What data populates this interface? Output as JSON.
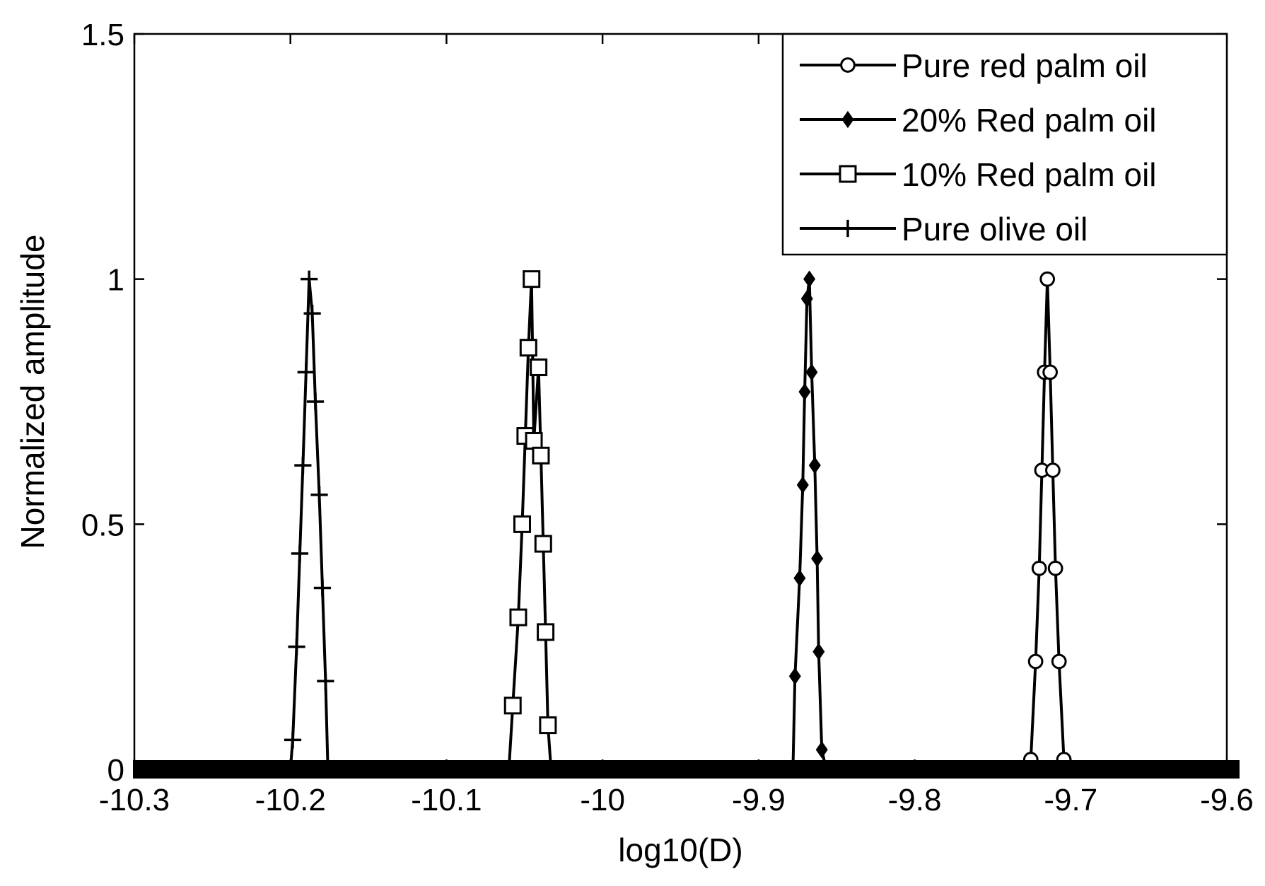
{
  "chart_data": {
    "type": "line",
    "title": "",
    "xlabel": "log10(D)",
    "ylabel": "Normalized amplitude",
    "xlim": [
      -10.3,
      -9.6
    ],
    "ylim": [
      0,
      1.5
    ],
    "xticks": [
      {
        "value": -10.3,
        "label": "-10.3"
      },
      {
        "value": -10.2,
        "label": "-10.2"
      },
      {
        "value": -10.1,
        "label": "-10.1"
      },
      {
        "value": -10.0,
        "label": "-10"
      },
      {
        "value": -9.9,
        "label": "-9.9"
      },
      {
        "value": -9.8,
        "label": "-9.8"
      },
      {
        "value": -9.7,
        "label": "-9.7"
      },
      {
        "value": -9.6,
        "label": "-9.6"
      }
    ],
    "yticks": [
      {
        "value": 0,
        "label": "0"
      },
      {
        "value": 0.5,
        "label": "0.5"
      },
      {
        "value": 1,
        "label": "1"
      },
      {
        "value": 1.5,
        "label": "1.5"
      }
    ],
    "grid": false,
    "legend_position": "top-right",
    "line_color": "#000000",
    "series": [
      {
        "name": "Pure red palm oil",
        "marker": "circle",
        "center": -9.715,
        "x": [
          -9.73,
          -9.7256,
          -9.7225,
          -9.7202,
          -9.7185,
          -9.7168,
          -9.715,
          -9.7132,
          -9.7115,
          -9.7098,
          -9.7075,
          -9.7044,
          -9.7
        ],
        "y": [
          0,
          0.02,
          0.22,
          0.41,
          0.61,
          0.81,
          1.0,
          0.81,
          0.61,
          0.41,
          0.22,
          0.02,
          0
        ]
      },
      {
        "name": "20% Red palm oil",
        "marker": "diamond",
        "center": -9.866,
        "x": [
          -9.878,
          -9.8767,
          -9.8737,
          -9.8717,
          -9.8705,
          -9.869,
          -9.8675,
          -9.866,
          -9.864,
          -9.8625,
          -9.8615,
          -9.8595,
          -9.8567,
          -9.8547,
          -9.854
        ],
        "y": [
          0,
          0.19,
          0.39,
          0.58,
          0.77,
          0.96,
          1.0,
          0.81,
          0.62,
          0.43,
          0.24,
          0.04,
          0,
          0,
          0
        ]
      },
      {
        "name": "10% Red palm oil",
        "marker": "square",
        "center": -10.045,
        "x": [
          -10.06,
          -10.0575,
          -10.054,
          -10.0515,
          -10.0495,
          -10.0475,
          -10.0455,
          -10.044,
          -10.041,
          -10.0395,
          -10.038,
          -10.0365,
          -10.035,
          -10.033,
          -10.032
        ],
        "y": [
          0,
          0.13,
          0.31,
          0.5,
          0.68,
          0.86,
          1.0,
          0.67,
          0.82,
          0.64,
          0.46,
          0.28,
          0.09,
          0,
          0
        ]
      },
      {
        "name": "Pure olive oil",
        "marker": "plus",
        "center": -10.186,
        "x": [
          -10.2,
          -10.1985,
          -10.196,
          -10.194,
          -10.192,
          -10.19,
          -10.188,
          -10.186,
          -10.184,
          -10.1815,
          -10.1795,
          -10.1775,
          -10.176,
          -10.1745
        ],
        "y": [
          0,
          0.06,
          0.25,
          0.44,
          0.62,
          0.81,
          1.0,
          0.93,
          0.75,
          0.56,
          0.37,
          0.18,
          0,
          0
        ]
      }
    ]
  }
}
